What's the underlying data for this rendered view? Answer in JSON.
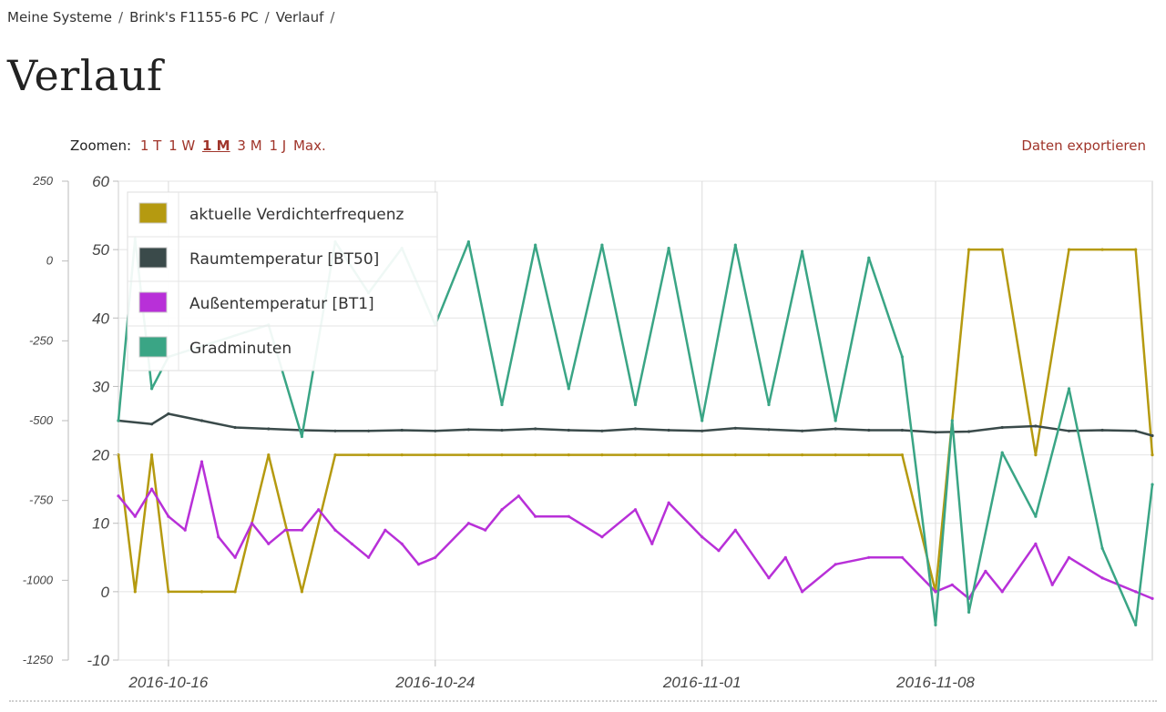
{
  "breadcrumb": {
    "items": [
      "Meine Systeme",
      "Brink's F1155-6 PC",
      "Verlauf"
    ],
    "separator": "/"
  },
  "page": {
    "title": "Verlauf"
  },
  "zoom": {
    "label": "Zoomen:",
    "options": [
      "1 T",
      "1 W",
      "1 M",
      "3 M",
      "1 J",
      "Max."
    ],
    "selected": "1 M"
  },
  "export_label": "Daten exportieren",
  "chart_data": {
    "type": "line",
    "title": "",
    "x_ticks": [
      "2016-10-16",
      "2016-10-24",
      "2016-11-01",
      "2016-11-08"
    ],
    "x_range": [
      "2016-10-14T12:00",
      "2016-11-14T12:00"
    ],
    "left_axis": {
      "ticks": [
        250,
        0,
        -250,
        -500,
        -750,
        -1000,
        -1250
      ],
      "range": [
        -1250,
        250
      ]
    },
    "right_axis": {
      "ticks": [
        60,
        50,
        40,
        30,
        20,
        10,
        0,
        -10
      ],
      "range": [
        -10,
        60
      ]
    },
    "grid": true,
    "legend_position": "top-left",
    "series": [
      {
        "name": "aktuelle Verdichterfrequenz",
        "color": "#b59a10",
        "axis": "right",
        "x": [
          "2016-10-14T12:00",
          "2016-10-15T00:00",
          "2016-10-15T12:00",
          "2016-10-16T00:00",
          "2016-10-17T00:00",
          "2016-10-18T00:00",
          "2016-10-19T00:00",
          "2016-10-20T00:00",
          "2016-10-21T00:00",
          "2016-10-22T00:00",
          "2016-10-23T00:00",
          "2016-10-24T00:00",
          "2016-10-25T00:00",
          "2016-10-26T00:00",
          "2016-10-27T00:00",
          "2016-10-28T00:00",
          "2016-10-29T00:00",
          "2016-10-30T00:00",
          "2016-10-31T00:00",
          "2016-11-01T00:00",
          "2016-11-02T00:00",
          "2016-11-03T00:00",
          "2016-11-04T00:00",
          "2016-11-05T00:00",
          "2016-11-06T00:00",
          "2016-11-07T00:00",
          "2016-11-08T00:00",
          "2016-11-09T00:00",
          "2016-11-10T00:00",
          "2016-11-11T00:00",
          "2016-11-12T00:00",
          "2016-11-13T00:00",
          "2016-11-14T00:00",
          "2016-11-14T12:00"
        ],
        "values": [
          20,
          0,
          20,
          0,
          0,
          0,
          20,
          0,
          20,
          20,
          20,
          20,
          20,
          20,
          20,
          20,
          20,
          20,
          20,
          20,
          20,
          20,
          20,
          20,
          20,
          20,
          0,
          50,
          50,
          20,
          50,
          50,
          50,
          20
        ]
      },
      {
        "name": "Raumtemperatur [BT50]",
        "color": "#3a4a4a",
        "axis": "right",
        "x": [
          "2016-10-14T12:00",
          "2016-10-15T12:00",
          "2016-10-16T00:00",
          "2016-10-17T00:00",
          "2016-10-18T00:00",
          "2016-10-19T00:00",
          "2016-10-20T00:00",
          "2016-10-21T00:00",
          "2016-10-22T00:00",
          "2016-10-23T00:00",
          "2016-10-24T00:00",
          "2016-10-25T00:00",
          "2016-10-26T00:00",
          "2016-10-27T00:00",
          "2016-10-28T00:00",
          "2016-10-29T00:00",
          "2016-10-30T00:00",
          "2016-10-31T00:00",
          "2016-11-01T00:00",
          "2016-11-02T00:00",
          "2016-11-03T00:00",
          "2016-11-04T00:00",
          "2016-11-05T00:00",
          "2016-11-06T00:00",
          "2016-11-07T00:00",
          "2016-11-08T00:00",
          "2016-11-09T00:00",
          "2016-11-10T00:00",
          "2016-11-11T00:00",
          "2016-11-12T00:00",
          "2016-11-13T00:00",
          "2016-11-14T00:00",
          "2016-11-14T12:00"
        ],
        "values": [
          25,
          24.5,
          26,
          25,
          24,
          23.8,
          23.6,
          23.5,
          23.5,
          23.6,
          23.5,
          23.7,
          23.6,
          23.8,
          23.6,
          23.5,
          23.8,
          23.6,
          23.5,
          23.9,
          23.7,
          23.5,
          23.8,
          23.6,
          23.6,
          23.3,
          23.4,
          24.0,
          24.2,
          23.5,
          23.6,
          23.5,
          22.8
        ]
      },
      {
        "name": "Außentemperatur [BT1]",
        "color": "#b830d8",
        "axis": "right",
        "x": [
          "2016-10-14T12:00",
          "2016-10-15T00:00",
          "2016-10-15T12:00",
          "2016-10-16T00:00",
          "2016-10-16T12:00",
          "2016-10-17T00:00",
          "2016-10-17T12:00",
          "2016-10-18T00:00",
          "2016-10-18T12:00",
          "2016-10-19T00:00",
          "2016-10-19T12:00",
          "2016-10-20T00:00",
          "2016-10-20T12:00",
          "2016-10-21T00:00",
          "2016-10-21T12:00",
          "2016-10-22T00:00",
          "2016-10-22T12:00",
          "2016-10-23T00:00",
          "2016-10-23T12:00",
          "2016-10-24T00:00",
          "2016-10-25T00:00",
          "2016-10-25T12:00",
          "2016-10-26T00:00",
          "2016-10-26T12:00",
          "2016-10-27T00:00",
          "2016-10-28T00:00",
          "2016-10-29T00:00",
          "2016-10-30T00:00",
          "2016-10-30T12:00",
          "2016-10-31T00:00",
          "2016-11-01T00:00",
          "2016-11-01T12:00",
          "2016-11-02T00:00",
          "2016-11-03T00:00",
          "2016-11-03T12:00",
          "2016-11-04T00:00",
          "2016-11-05T00:00",
          "2016-11-06T00:00",
          "2016-11-07T00:00",
          "2016-11-08T00:00",
          "2016-11-08T12:00",
          "2016-11-09T00:00",
          "2016-11-09T12:00",
          "2016-11-10T00:00",
          "2016-11-11T00:00",
          "2016-11-11T12:00",
          "2016-11-12T00:00",
          "2016-11-13T00:00",
          "2016-11-14T00:00",
          "2016-11-14T12:00"
        ],
        "values": [
          14,
          11,
          15,
          11,
          9,
          19,
          8,
          5,
          10,
          7,
          9,
          9,
          12,
          9,
          7,
          5,
          9,
          7,
          4,
          5,
          10,
          9,
          12,
          14,
          11,
          11,
          8,
          12,
          7,
          13,
          8,
          6,
          9,
          2,
          5,
          0,
          4,
          5,
          5,
          0,
          1,
          -1,
          3,
          0,
          7,
          1,
          5,
          2,
          0,
          -1
        ]
      },
      {
        "name": "Gradminuten",
        "color": "#3aa585",
        "axis": "left",
        "x": [
          "2016-10-14T12:00",
          "2016-10-15T00:00",
          "2016-10-15T12:00",
          "2016-10-16T00:00",
          "2016-10-19T00:00",
          "2016-10-20T00:00",
          "2016-10-21T00:00",
          "2016-10-22T00:00",
          "2016-10-23T00:00",
          "2016-10-24T00:00",
          "2016-10-25T00:00",
          "2016-10-26T00:00",
          "2016-10-27T00:00",
          "2016-10-28T00:00",
          "2016-10-29T00:00",
          "2016-10-30T00:00",
          "2016-10-31T00:00",
          "2016-11-01T00:00",
          "2016-11-02T00:00",
          "2016-11-03T00:00",
          "2016-11-04T00:00",
          "2016-11-05T00:00",
          "2016-11-06T00:00",
          "2016-11-07T00:00",
          "2016-11-08T00:00",
          "2016-11-08T12:00",
          "2016-11-09T00:00",
          "2016-11-10T00:00",
          "2016-11-11T00:00",
          "2016-11-12T00:00",
          "2016-11-13T00:00",
          "2016-11-14T00:00",
          "2016-11-14T12:00"
        ],
        "values": [
          -500,
          70,
          -400,
          -300,
          -200,
          -550,
          60,
          -100,
          40,
          -200,
          60,
          -450,
          50,
          -400,
          50,
          -450,
          40,
          -500,
          50,
          -450,
          30,
          -500,
          10,
          -300,
          -1140,
          -500,
          -1100,
          -600,
          -800,
          -400,
          -900,
          -1140,
          -700
        ]
      }
    ]
  }
}
